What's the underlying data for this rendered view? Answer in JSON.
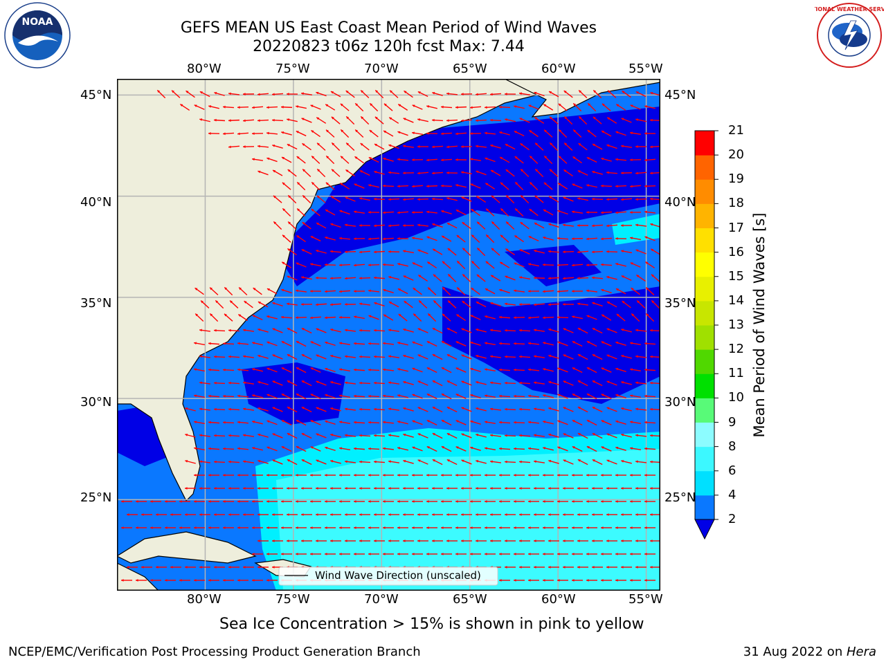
{
  "title": {
    "line1": "GEFS MEAN US East Coast Mean Period of Wind Waves",
    "line2": "20220823 t06z 120h fcst   Max: 7.44"
  },
  "map": {
    "lon_range": [
      -85,
      -54.2
    ],
    "lat_range": [
      20.5,
      45.8
    ],
    "lon_ticks": [
      -80,
      -75,
      -70,
      -65,
      -60,
      -55
    ],
    "lat_ticks": [
      45,
      40,
      35,
      30,
      25
    ],
    "lon_tick_labels": [
      "80°W",
      "75°W",
      "70°W",
      "65°W",
      "60°W",
      "55°W"
    ],
    "lat_tick_labels": [
      "45°N",
      "40°N",
      "35°N",
      "30°N",
      "25°N"
    ],
    "legend_label": "Wind Wave Direction (unscaled)",
    "colors": {
      "land": "#eeeedc",
      "class_2_4": "#0a78ff",
      "class_below_2": "#0000e6",
      "class_4_6": "#00f0ff",
      "class_6_8": "#3cfbff",
      "arrow": "#ff0000",
      "grid": "#b4b4b4"
    }
  },
  "colorbar": {
    "label": "Mean Period of Wind Waves [s]",
    "tick_labels": [
      "2",
      "4",
      "6",
      "8",
      "9",
      "10",
      "11",
      "12",
      "13",
      "14",
      "15",
      "16",
      "17",
      "18",
      "19",
      "20",
      "21"
    ],
    "colors": [
      "#0a78ff",
      "#00e0ff",
      "#3cf8ff",
      "#8cfcff",
      "#58fa78",
      "#00e000",
      "#50d800",
      "#a0e000",
      "#c8e600",
      "#e8f000",
      "#ffff00",
      "#ffe000",
      "#ffb400",
      "#ff8c00",
      "#ff6400",
      "#ff3c00",
      "#ff0000"
    ],
    "under_color": "#0000e6"
  },
  "subtitle": "Sea Ice Concentration > 15% is shown in pink to yellow",
  "footer": {
    "left": "NCEP/EMC/Verification Post Processing Product Generation Branch",
    "date": "31 Aug 2022 on ",
    "machine": "Hera"
  },
  "logos": {
    "noaa_text": "NOAA",
    "nws_text": "NATIONAL WEATHER SERVICE"
  }
}
